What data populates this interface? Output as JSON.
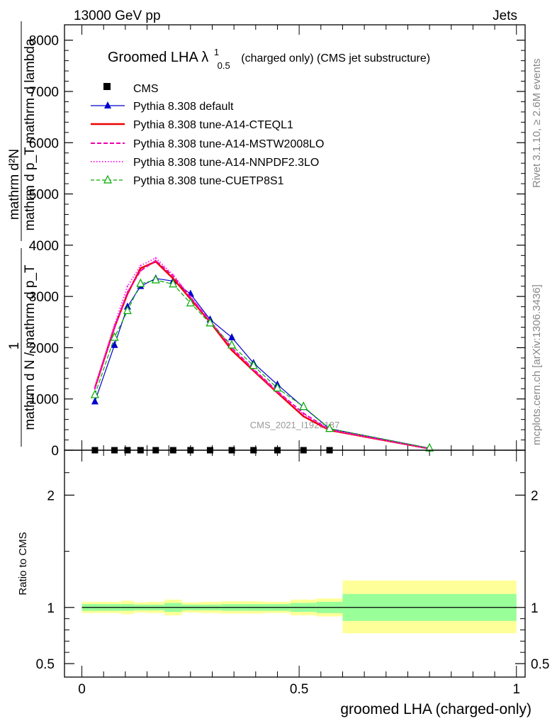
{
  "header": {
    "left": "13000 GeV pp",
    "right": "Jets"
  },
  "side_text": {
    "rivet": "Rivet 3.1.10, ≥ 2.6M events",
    "mcplots": "mcplots.cern.ch [arXiv:1306.3436]"
  },
  "watermark": "CMS_2021_I1920187",
  "chart_data": [
    {
      "type": "line",
      "title": "Groomed LHA λ",
      "title_sup": "1",
      "title_sub": "0.5",
      "title_tail": "(charged only) (CMS jet substructure)",
      "ylabel_num": "mathrm d²N",
      "ylabel_den": "mathrm d p_T mathrm d lambda",
      "ylabel_frac_num": "1",
      "ylabel_frac_den": "mathrm d N / mathrm d p_T",
      "xlim": [
        -0.04,
        1.02
      ],
      "ylim": [
        0,
        8300
      ],
      "yticks": [
        0,
        1000,
        2000,
        3000,
        4000,
        5000,
        6000,
        7000,
        8000
      ],
      "ytick_labels": [
        "0",
        "1000",
        "2000",
        "3000",
        "4000",
        "5000",
        "6000",
        "7000",
        "8000"
      ],
      "legend_position": "top-left",
      "cms": {
        "name": "CMS",
        "x": [
          0.03,
          0.075,
          0.105,
          0.135,
          0.17,
          0.21,
          0.25,
          0.295,
          0.345,
          0.395,
          0.45,
          0.51,
          0.57
        ],
        "y": [
          0,
          0,
          0,
          0,
          0,
          0,
          0,
          0,
          0,
          0,
          0,
          0,
          0
        ]
      },
      "series": [
        {
          "name": "Pythia 8.308 default",
          "color": "#0000cc",
          "style": "solid",
          "marker": "triangle-filled",
          "x": [
            0.03,
            0.075,
            0.105,
            0.135,
            0.17,
            0.21,
            0.25,
            0.295,
            0.345,
            0.395,
            0.45,
            0.51,
            0.57,
            0.8
          ],
          "y": [
            950,
            2050,
            2800,
            3200,
            3350,
            3300,
            3050,
            2550,
            2200,
            1700,
            1280,
            840,
            420,
            40
          ]
        },
        {
          "name": "Pythia 8.308 tune-A14-CTEQL1",
          "color": "#ee0000",
          "style": "solid",
          "marker": "none",
          "x": [
            0.03,
            0.075,
            0.105,
            0.135,
            0.17,
            0.21,
            0.25,
            0.295,
            0.345,
            0.395,
            0.45,
            0.51,
            0.57,
            0.8
          ],
          "y": [
            1220,
            2400,
            3050,
            3550,
            3680,
            3350,
            2950,
            2500,
            1950,
            1550,
            1120,
            660,
            390,
            30
          ]
        },
        {
          "name": "Pythia 8.308 tune-A14-MSTW2008LO",
          "color": "#ee00aa",
          "style": "dashed",
          "marker": "none",
          "x": [
            0.03,
            0.075,
            0.105,
            0.135,
            0.17,
            0.21,
            0.25,
            0.295,
            0.345,
            0.395,
            0.45,
            0.51,
            0.57,
            0.8
          ],
          "y": [
            1200,
            2380,
            3080,
            3500,
            3700,
            3400,
            2980,
            2520,
            2000,
            1580,
            1150,
            720,
            400,
            30
          ]
        },
        {
          "name": "Pythia 8.308 tune-A14-NNPDF2.3LO",
          "color": "#ff22ee",
          "style": "dotted",
          "marker": "none",
          "x": [
            0.03,
            0.075,
            0.105,
            0.135,
            0.17,
            0.21,
            0.25,
            0.295,
            0.345,
            0.395,
            0.45,
            0.51,
            0.57,
            0.8
          ],
          "y": [
            1230,
            2450,
            3200,
            3600,
            3750,
            3420,
            3000,
            2520,
            2000,
            1570,
            1140,
            700,
            400,
            30
          ]
        },
        {
          "name": "Pythia 8.308 tune-CUETP8S1",
          "color": "#00aa00",
          "style": "dashed",
          "marker": "triangle-open",
          "x": [
            0.03,
            0.075,
            0.105,
            0.135,
            0.17,
            0.21,
            0.25,
            0.295,
            0.345,
            0.395,
            0.45,
            0.51,
            0.57,
            0.8
          ],
          "y": [
            1080,
            2200,
            2720,
            3250,
            3320,
            3240,
            2870,
            2480,
            2050,
            1650,
            1210,
            850,
            420,
            40
          ]
        }
      ]
    },
    {
      "type": "area",
      "ylabel": "Ratio to CMS",
      "xlabel": "groomed LHA (charged-only)",
      "xlim": [
        -0.04,
        1.02
      ],
      "ylim": [
        0.38,
        2.4
      ],
      "xticks": [
        0,
        0.5,
        1
      ],
      "xtick_labels": [
        "0",
        "0.5",
        "1"
      ],
      "yticks": [
        0.5,
        1,
        2
      ],
      "ytick_labels": [
        "0.5",
        "1",
        "2"
      ],
      "bins": [
        0,
        0.06,
        0.09,
        0.12,
        0.15,
        0.19,
        0.23,
        0.27,
        0.32,
        0.37,
        0.42,
        0.48,
        0.54,
        0.6,
        1.0
      ],
      "stat_band": {
        "color": "#99ff99",
        "low": [
          0.97,
          0.97,
          0.97,
          0.975,
          0.975,
          0.96,
          0.975,
          0.975,
          0.97,
          0.97,
          0.97,
          0.96,
          0.95,
          0.88
        ],
        "high": [
          1.03,
          1.03,
          1.03,
          1.025,
          1.025,
          1.04,
          1.025,
          1.025,
          1.03,
          1.03,
          1.03,
          1.04,
          1.05,
          1.12
        ]
      },
      "total_band": {
        "color": "#ffff99",
        "low": [
          0.95,
          0.95,
          0.94,
          0.955,
          0.95,
          0.93,
          0.955,
          0.95,
          0.945,
          0.945,
          0.95,
          0.93,
          0.92,
          0.77
        ],
        "high": [
          1.05,
          1.05,
          1.06,
          1.045,
          1.05,
          1.07,
          1.045,
          1.05,
          1.055,
          1.055,
          1.05,
          1.07,
          1.08,
          1.24
        ]
      },
      "reference": 1
    }
  ]
}
